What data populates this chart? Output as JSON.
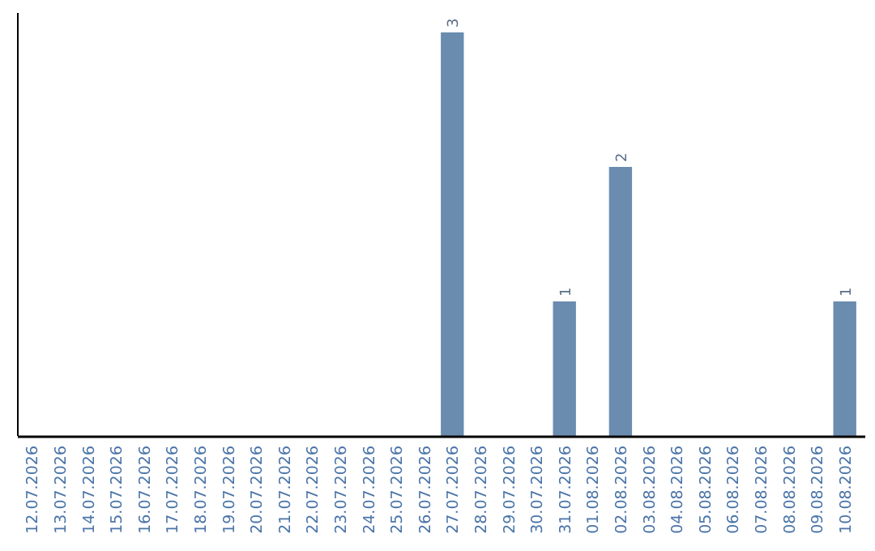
{
  "chart_data": {
    "type": "bar",
    "categories": [
      "12.07.2026",
      "13.07.2026",
      "14.07.2026",
      "15.07.2026",
      "16.07.2026",
      "17.07.2026",
      "18.07.2026",
      "19.07.2026",
      "20.07.2026",
      "21.07.2026",
      "22.07.2026",
      "23.07.2026",
      "24.07.2026",
      "25.07.2026",
      "26.07.2026",
      "27.07.2026",
      "28.07.2026",
      "29.07.2026",
      "30.07.2026",
      "31.07.2026",
      "01.08.2026",
      "02.08.2026",
      "03.08.2026",
      "04.08.2026",
      "05.08.2026",
      "06.08.2026",
      "07.08.2026",
      "08.08.2026",
      "09.08.2026",
      "10.08.2026"
    ],
    "values": [
      null,
      null,
      null,
      null,
      null,
      null,
      null,
      null,
      null,
      null,
      null,
      null,
      null,
      null,
      null,
      3,
      null,
      null,
      null,
      1,
      null,
      2,
      null,
      null,
      null,
      null,
      null,
      null,
      null,
      1
    ],
    "data_labels": true,
    "color": "#6a8caf"
  }
}
